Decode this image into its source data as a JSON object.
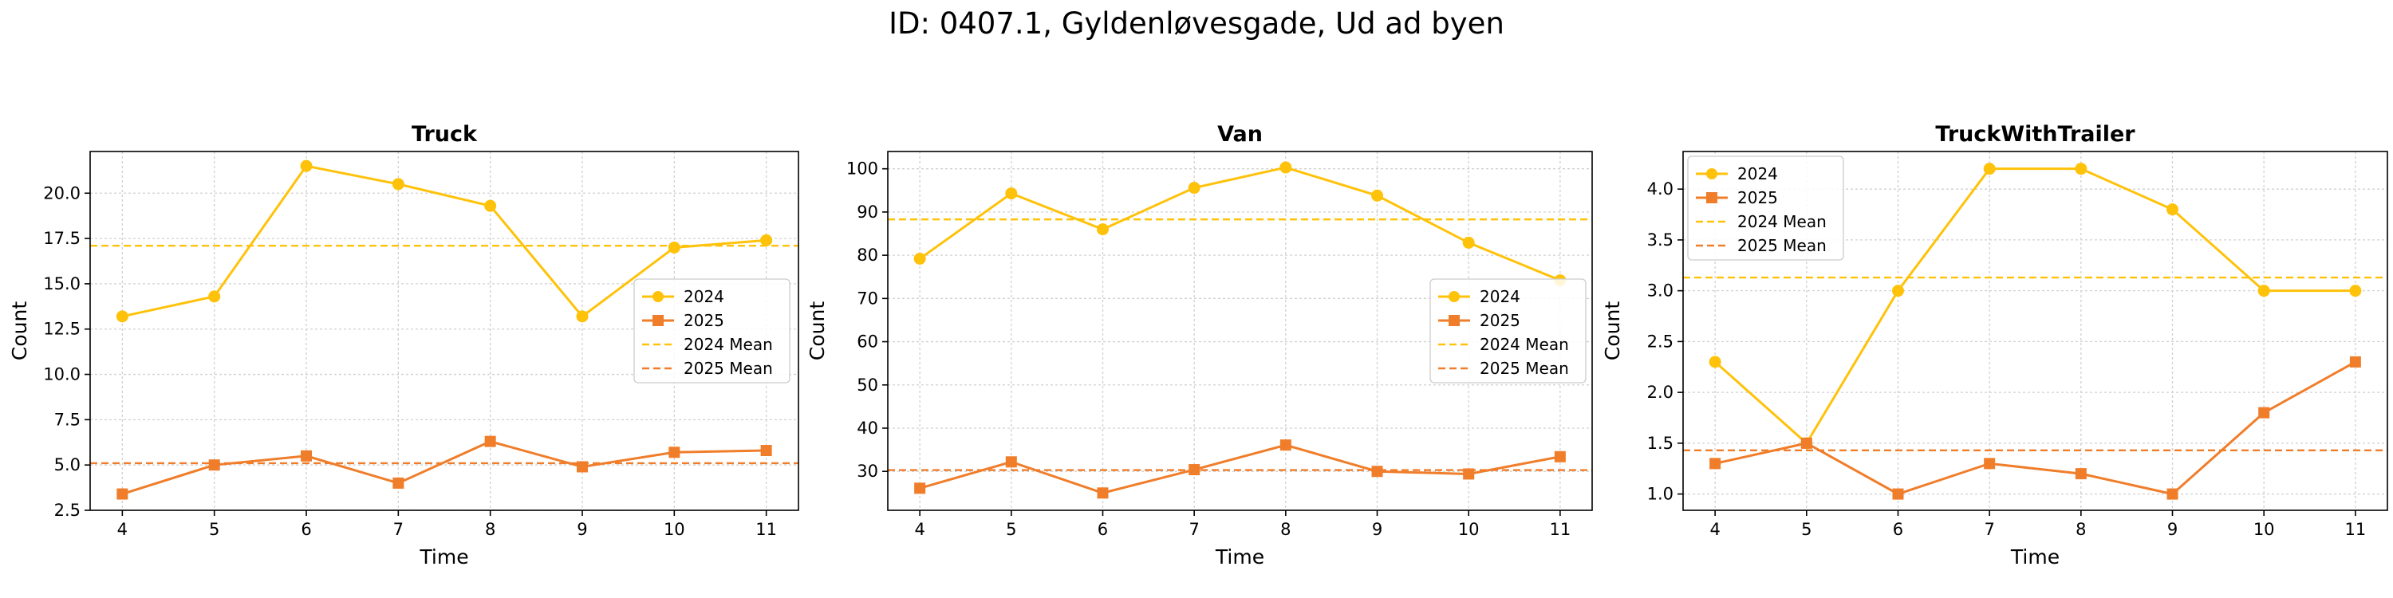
{
  "suptitle": "ID: 0407.1, Gyldenløvesgade, Ud ad byen",
  "colors": {
    "s2024": "#FFC20A",
    "s2025": "#F07D2A",
    "grid": "#d0d0d0"
  },
  "chart_data": [
    {
      "type": "line",
      "title": "Truck",
      "xlabel": "Time",
      "ylabel": "Count",
      "x": [
        4,
        5,
        6,
        7,
        8,
        9,
        10,
        11
      ],
      "xlim": [
        3.65,
        11.35
      ],
      "ylim": [
        2.5,
        22.3
      ],
      "yticks": [
        2.5,
        5.0,
        7.5,
        10.0,
        12.5,
        15.0,
        17.5,
        20.0
      ],
      "grid": true,
      "legend": "center-right",
      "series": [
        {
          "name": "2024",
          "marker": "circle",
          "values": [
            13.2,
            14.3,
            21.5,
            20.5,
            19.3,
            13.2,
            17.0,
            17.4
          ]
        },
        {
          "name": "2025",
          "marker": "square",
          "values": [
            3.4,
            5.0,
            5.5,
            4.0,
            6.3,
            4.9,
            5.7,
            5.8
          ]
        }
      ],
      "means": [
        {
          "name": "2024 Mean",
          "value": 17.1
        },
        {
          "name": "2025 Mean",
          "value": 5.1
        }
      ]
    },
    {
      "type": "line",
      "title": "Van",
      "xlabel": "Time",
      "ylabel": "Count",
      "x": [
        4,
        5,
        6,
        7,
        8,
        9,
        10,
        11
      ],
      "xlim": [
        3.65,
        11.35
      ],
      "ylim": [
        21,
        104
      ],
      "yticks": [
        30,
        40,
        50,
        60,
        70,
        80,
        90,
        100
      ],
      "grid": true,
      "legend": "center-right",
      "series": [
        {
          "name": "2024",
          "marker": "circle",
          "values": [
            79.2,
            94.3,
            86.0,
            95.6,
            100.3,
            93.8,
            82.9,
            74.2
          ]
        },
        {
          "name": "2025",
          "marker": "square",
          "values": [
            26.1,
            32.2,
            25.0,
            30.4,
            36.1,
            30.0,
            29.4,
            33.4
          ]
        }
      ],
      "means": [
        {
          "name": "2024 Mean",
          "value": 88.3
        },
        {
          "name": "2025 Mean",
          "value": 30.3
        }
      ]
    },
    {
      "type": "line",
      "title": "TruckWithTrailer",
      "xlabel": "Time",
      "ylabel": "Count",
      "x": [
        4,
        5,
        6,
        7,
        8,
        9,
        10,
        11
      ],
      "xlim": [
        3.65,
        11.35
      ],
      "ylim": [
        0.84,
        4.37
      ],
      "yticks": [
        1.0,
        1.5,
        2.0,
        2.5,
        3.0,
        3.5,
        4.0
      ],
      "grid": true,
      "legend": "top-left",
      "series": [
        {
          "name": "2024",
          "marker": "circle",
          "values": [
            2.3,
            1.5,
            3.0,
            4.2,
            4.2,
            3.8,
            3.0,
            3.0
          ]
        },
        {
          "name": "2025",
          "marker": "square",
          "values": [
            1.3,
            1.5,
            1.0,
            1.3,
            1.2,
            1.0,
            1.8,
            2.3
          ]
        }
      ],
      "means": [
        {
          "name": "2024 Mean",
          "value": 3.13
        },
        {
          "name": "2025 Mean",
          "value": 1.43
        }
      ]
    }
  ]
}
